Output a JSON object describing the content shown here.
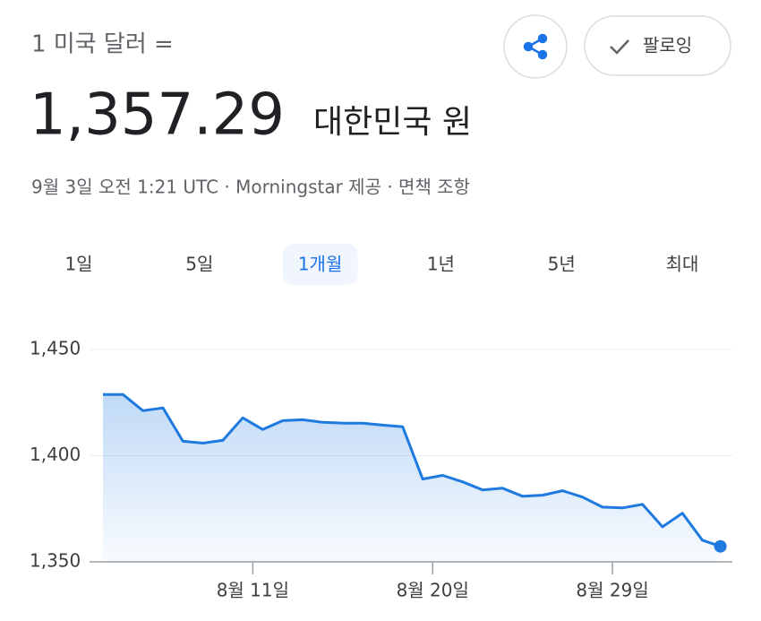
{
  "header": {
    "prefix": "1 미국 달러 =",
    "rate": "1,357.29",
    "currency": "대한민국 원",
    "meta": "9월 3일 오전 1:21 UTC · Morningstar 제공 · 면책 조항",
    "follow": "팔로잉"
  },
  "tabs": {
    "items": [
      "1일",
      "5일",
      "1개월",
      "1년",
      "5년",
      "최대"
    ],
    "selected": 2
  },
  "chart_data": {
    "type": "line",
    "color": "#1f7ae0",
    "x": [
      3.5,
      4.5,
      5.5,
      6.5,
      7.5,
      8.5,
      9.5,
      10.5,
      11.5,
      12.5,
      13.5,
      14.5,
      15.5,
      16.5,
      17.5,
      18.5,
      19.5,
      20.5,
      21.5,
      22.5,
      23.5,
      24.5,
      25.5,
      26.5,
      27.5,
      28.5,
      29.5,
      30.5,
      31.5,
      32.5,
      33.5,
      34.4
    ],
    "values": [
      1428.8,
      1428.8,
      1421.2,
      1422.5,
      1406.8,
      1405.9,
      1407.2,
      1417.8,
      1412.3,
      1416.5,
      1416.9,
      1415.7,
      1415.3,
      1415.3,
      1414.4,
      1413.6,
      1389.0,
      1390.7,
      1387.7,
      1383.9,
      1384.7,
      1380.9,
      1381.4,
      1383.5,
      1380.5,
      1375.8,
      1375.4,
      1377.1,
      1366.5,
      1372.9,
      1360.2,
      1357.29
    ],
    "xlim": [
      3.5,
      35
    ],
    "ylim": [
      1350,
      1450
    ],
    "xticks": [
      {
        "value": 11,
        "label": "8월 11일"
      },
      {
        "value": 20,
        "label": "8월 20일"
      },
      {
        "value": 29,
        "label": "8월 29일"
      }
    ],
    "yticks": [
      {
        "value": 1350,
        "label": "1,350"
      },
      {
        "value": 1400,
        "label": "1,400"
      },
      {
        "value": 1450,
        "label": "1,450"
      }
    ],
    "grid": true
  }
}
